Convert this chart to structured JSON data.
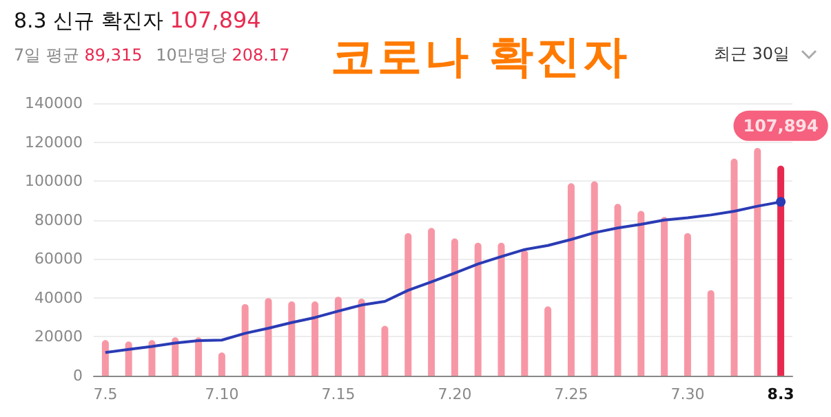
{
  "chart_data": {
    "type": "bar",
    "title": "8.3 신규 확진자",
    "annotations": [
      "107,894",
      "7일 평균",
      "89,315",
      "10만명당",
      "208.17",
      "코로나 확진자",
      "최근 30일",
      {
        "text": "107,894",
        "x": "8.3",
        "y": 107894
      }
    ],
    "categories": [
      "7.5",
      null,
      null,
      null,
      null,
      "7.10",
      null,
      null,
      null,
      null,
      "7.15",
      null,
      null,
      null,
      null,
      "7.20",
      null,
      null,
      null,
      null,
      "7.25",
      null,
      null,
      null,
      null,
      "7.30",
      null,
      null,
      null,
      "8.3"
    ],
    "series": [
      {
        "colors": [
          "#f797a6",
          "#f797a6",
          "#f797a6",
          "#f797a6",
          "#f797a6",
          "#f797a6",
          "#f797a6",
          "#f797a6",
          "#f797a6",
          "#f797a6",
          "#f797a6",
          "#f797a6",
          "#f797a6",
          "#f797a6",
          "#f797a6",
          "#f797a6",
          "#f797a6",
          "#f797a6",
          "#f797a6",
          "#f797a6",
          "#f797a6",
          "#f797a6",
          "#f797a6",
          "#f797a6",
          "#f797a6",
          "#f797a6",
          "#f797a6",
          "#f797a6",
          "#f797a6",
          "#e8294f"
        ],
        "values": [
          18300,
          17600,
          18300,
          19700,
          19700,
          11900,
          36800,
          39900,
          38200,
          38200,
          40600,
          39600,
          25600,
          73300,
          75900,
          70500,
          68300,
          68300,
          64500,
          35600,
          98900,
          99900,
          88300,
          84700,
          81600,
          73300,
          43900,
          111500,
          117000,
          107894
        ]
      },
      {
        "type": "line",
        "color": "#2a3bb5",
        "values": [
          11900,
          13500,
          15000,
          16800,
          18000,
          18300,
          21800,
          24400,
          27300,
          29900,
          33200,
          36300,
          38200,
          43900,
          48200,
          52700,
          57400,
          61200,
          64800,
          66900,
          70000,
          73500,
          75900,
          77800,
          80000,
          81100,
          82600,
          84500,
          87100,
          89315
        ]
      }
    ],
    "ylim": [
      0,
      140000
    ],
    "yticks": [
      0,
      20000,
      40000,
      60000,
      80000,
      100000,
      120000,
      140000
    ],
    "grid": "y",
    "line_style": "solid"
  }
}
